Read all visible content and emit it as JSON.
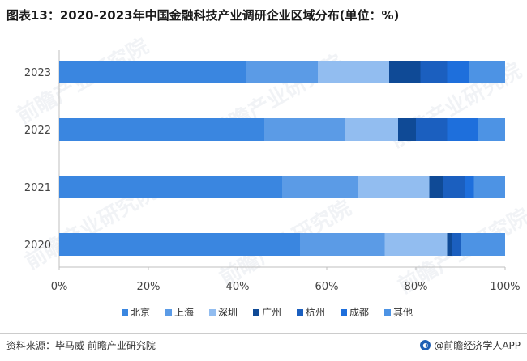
{
  "title": "图表13：2020-2023年中国金融科技产业调研企业区域分布(单位：%)",
  "source": "资料来源：毕马威 前瞻产业研究院",
  "brand": "@前瞻经济学人APP",
  "watermark": "前瞻产业研究院",
  "chart_data": {
    "type": "bar",
    "orientation": "horizontal",
    "stacked": true,
    "categories": [
      "2023",
      "2022",
      "2021",
      "2020"
    ],
    "xlim": [
      0,
      100
    ],
    "xticks": [
      "0%",
      "20%",
      "40%",
      "60%",
      "80%",
      "100%"
    ],
    "legend_position": "bottom",
    "series": [
      {
        "name": "北京",
        "color": "#3a86e0",
        "values": [
          42,
          46,
          50,
          54
        ]
      },
      {
        "name": "上海",
        "color": "#5b9be6",
        "values": [
          16,
          18,
          17,
          19
        ]
      },
      {
        "name": "深圳",
        "color": "#92bdf0",
        "values": [
          16,
          12,
          16,
          14
        ]
      },
      {
        "name": "广州",
        "color": "#0f4a96",
        "values": [
          7,
          4,
          3,
          1
        ]
      },
      {
        "name": "杭州",
        "color": "#1b5fbf",
        "values": [
          6,
          7,
          5,
          2
        ]
      },
      {
        "name": "成都",
        "color": "#1e6fdc",
        "values": [
          5,
          7,
          2,
          0
        ]
      },
      {
        "name": "其他",
        "color": "#4d93e4",
        "values": [
          8,
          6,
          7,
          10
        ]
      }
    ]
  }
}
